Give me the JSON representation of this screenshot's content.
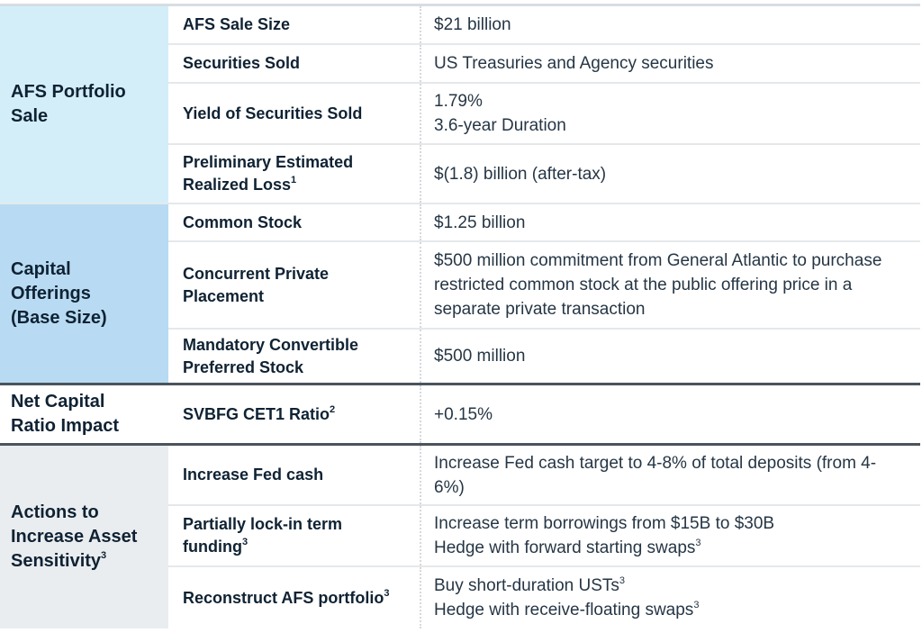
{
  "colors": {
    "afs_category_bg": "#d3eef9",
    "capital_category_bg": "#b8dbf3",
    "net_capital_category_bg": "#ffffff",
    "actions_category_bg": "#eaedf0",
    "text": "#0f2233",
    "thick_divider": "#4b545c"
  },
  "sections": [
    {
      "category": "AFS Portfolio Sale",
      "rows": [
        {
          "label": "AFS Sale Size",
          "value_lines": [
            "$21 billion"
          ]
        },
        {
          "label": "Securities Sold",
          "value_lines": [
            "US Treasuries and Agency securities"
          ]
        },
        {
          "label": "Yield of Securities Sold",
          "value_lines": [
            "1.79%",
            "3.6-year Duration"
          ]
        },
        {
          "label": "Preliminary Estimated Realized Loss",
          "label_footnote": "1",
          "value_lines": [
            "$(1.8) billion (after-tax)"
          ]
        }
      ]
    },
    {
      "category": "Capital Offerings (Base Size)",
      "rows": [
        {
          "label": "Common Stock",
          "value_lines": [
            "$1.25 billion"
          ]
        },
        {
          "label": "Concurrent Private Placement",
          "value_lines": [
            "$500 million commitment from General Atlantic to purchase restricted common stock at the public offering price in a separate private transaction"
          ]
        },
        {
          "label": "Mandatory Convertible Preferred Stock",
          "value_lines": [
            "$500 million"
          ]
        }
      ]
    },
    {
      "category": "Net Capital Ratio Impact",
      "rows": [
        {
          "label": "SVBFG CET1 Ratio",
          "label_footnote": "2",
          "value_lines": [
            "+0.15%"
          ]
        }
      ]
    },
    {
      "category": "Actions to Increase Asset Sensitivity",
      "category_footnote": "3",
      "rows": [
        {
          "label": "Increase Fed cash",
          "value_lines": [
            "Increase Fed cash target to 4-8% of total deposits (from 4-6%)"
          ]
        },
        {
          "label": "Partially lock-in term funding",
          "label_footnote": "3",
          "value_lines": [
            "Increase term borrowings from $15B to $30B",
            "Hedge with forward starting swaps"
          ],
          "value_footnotes": [
            "",
            "3"
          ]
        },
        {
          "label": "Reconstruct AFS portfolio",
          "label_footnote": "3",
          "value_lines": [
            "Buy short-duration USTs",
            "Hedge with receive-floating swaps"
          ],
          "value_footnotes": [
            "3",
            "3"
          ]
        }
      ]
    }
  ]
}
